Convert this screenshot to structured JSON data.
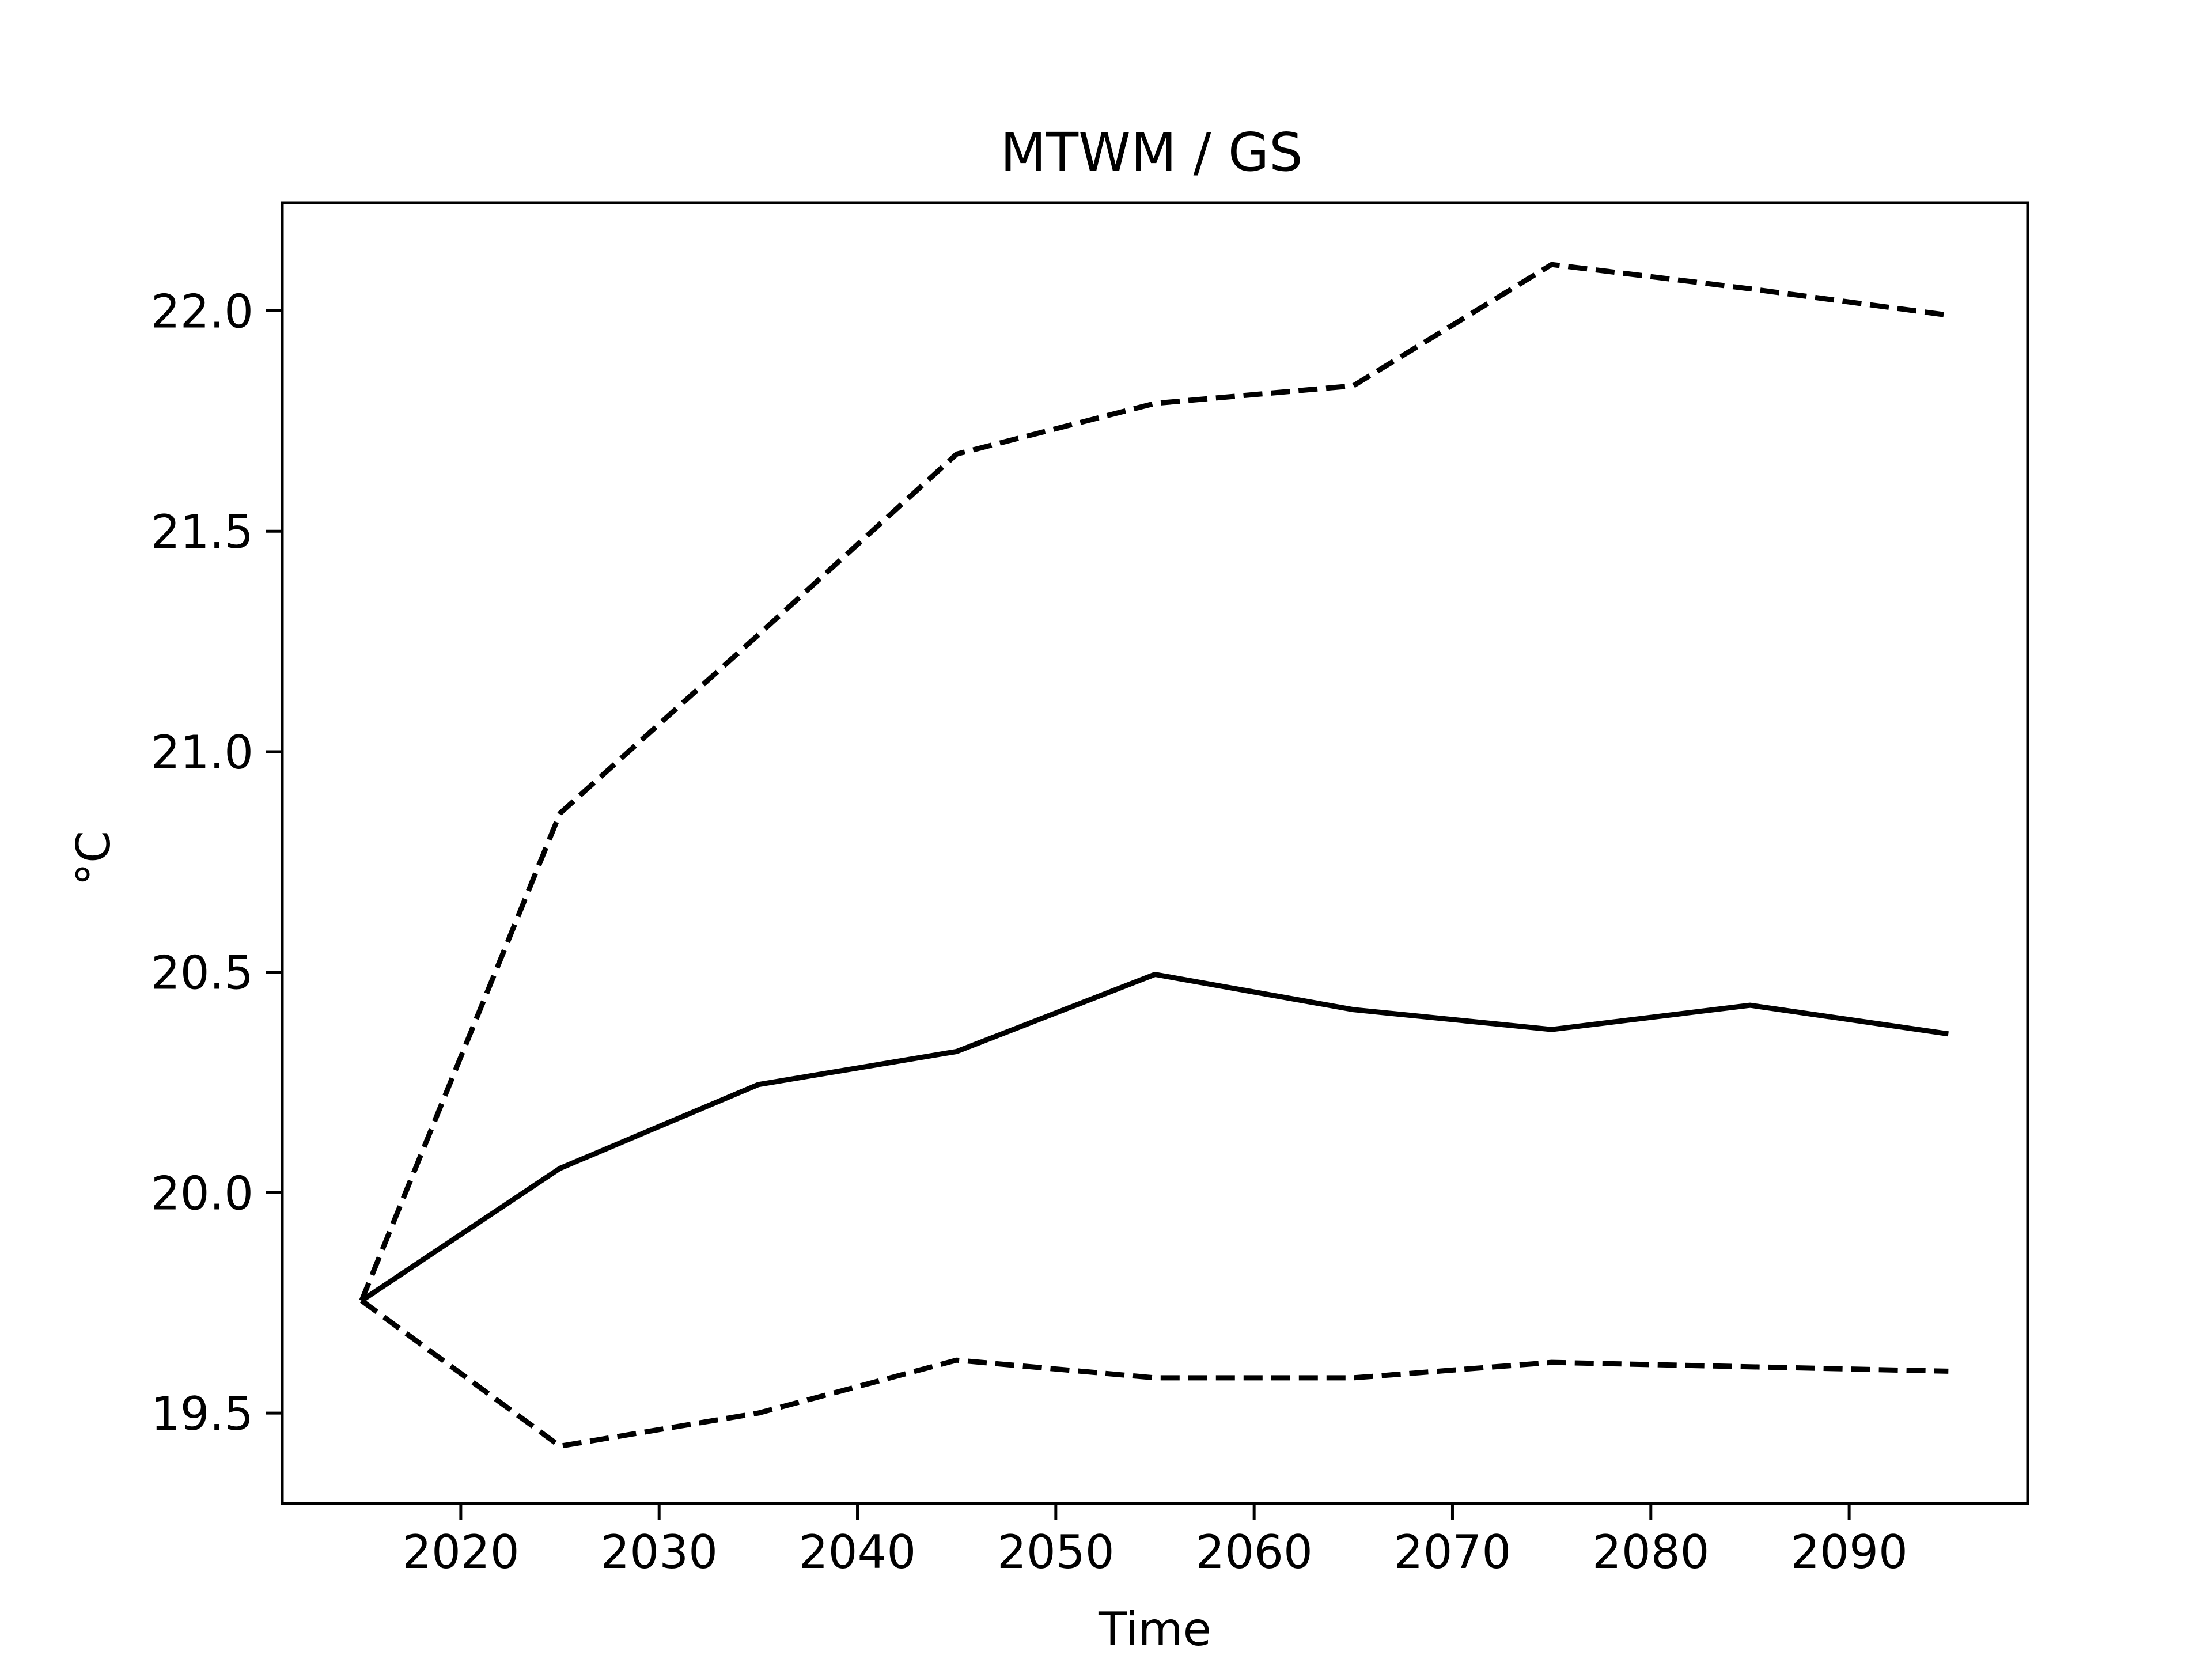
{
  "chart_data": {
    "type": "line",
    "title": "MTWM / GS",
    "xlabel": "Time",
    "ylabel": "°C",
    "xlim": [
      2011,
      2099
    ],
    "ylim": [
      19.295,
      22.245
    ],
    "xticks": [
      2020,
      2030,
      2040,
      2050,
      2060,
      2070,
      2080,
      2090
    ],
    "xtick_labels": [
      "2020",
      "2030",
      "2040",
      "2050",
      "2060",
      "2070",
      "2080",
      "2090"
    ],
    "yticks": [
      19.5,
      20.0,
      20.5,
      21.0,
      21.5,
      22.0
    ],
    "ytick_labels": [
      "19.5",
      "20.0",
      "20.5",
      "21.0",
      "21.5",
      "22.0"
    ],
    "grid": false,
    "legend": "none",
    "x": [
      2015,
      2025,
      2035,
      2045,
      2055,
      2065,
      2075,
      2085,
      2095
    ],
    "series": [
      {
        "style": "solid",
        "color": "#000000",
        "values": [
          19.755,
          20.055,
          20.245,
          20.32,
          20.495,
          20.415,
          20.37,
          20.425,
          20.36
        ]
      },
      {
        "style": "dashed",
        "color": "#000000",
        "values": [
          19.755,
          20.86,
          21.265,
          21.675,
          21.79,
          21.83,
          22.105,
          22.05,
          21.99
        ]
      },
      {
        "style": "dashed",
        "color": "#000000",
        "values": [
          19.755,
          19.425,
          19.5,
          19.62,
          19.58,
          19.58,
          19.615,
          19.605,
          19.595
        ]
      }
    ]
  }
}
